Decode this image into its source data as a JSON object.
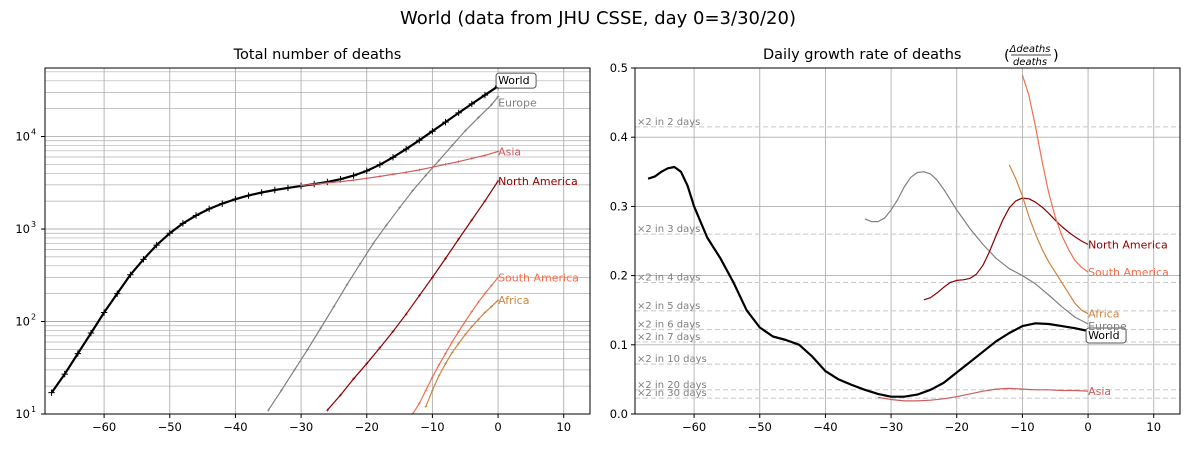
{
  "figure": {
    "title": "World (data from JHU CSSE, day 0=3/30/20)"
  },
  "chart_data": [
    {
      "type": "line",
      "title": "Total number of deaths",
      "yscale": "log",
      "xlim": [
        -69,
        14
      ],
      "ylim": [
        10,
        55000
      ],
      "x_ticks": [
        -60,
        -50,
        -40,
        -30,
        -20,
        -10,
        0,
        10
      ],
      "x_tick_labels": [
        "−60",
        "−50",
        "−40",
        "−30",
        "−20",
        "−10",
        "0",
        "10"
      ],
      "y_ticks": [
        {
          "value": 10,
          "base": "10",
          "exp": "1"
        },
        {
          "value": 100,
          "base": "10",
          "exp": "2"
        },
        {
          "value": 1000,
          "base": "10",
          "exp": "3"
        },
        {
          "value": 10000,
          "base": "10",
          "exp": "4"
        }
      ],
      "grid": true,
      "series": [
        {
          "name": "World",
          "color": "#000000",
          "boxed": true,
          "x": [
            -68,
            -66,
            -64,
            -62,
            -60,
            -58,
            -56,
            -54,
            -52,
            -50,
            -48,
            -46,
            -44,
            -42,
            -40,
            -38,
            -36,
            -34,
            -32,
            -30,
            -28,
            -26,
            -24,
            -22,
            -20,
            -18,
            -16,
            -14,
            -12,
            -10,
            -8,
            -6,
            -4,
            -2,
            0
          ],
          "y": [
            17,
            27,
            45,
            75,
            125,
            200,
            320,
            470,
            670,
            900,
            1150,
            1400,
            1650,
            1880,
            2100,
            2300,
            2480,
            2640,
            2780,
            2920,
            3060,
            3230,
            3450,
            3780,
            4250,
            4950,
            5950,
            7300,
            9100,
            11400,
            14300,
            18000,
            22500,
            28000,
            35000
          ]
        },
        {
          "name": "Europe",
          "color": "#808080",
          "x": [
            -35,
            -33,
            -31,
            -29,
            -27,
            -25,
            -23,
            -21,
            -19,
            -17,
            -15,
            -13,
            -11,
            -9,
            -7,
            -5,
            -3,
            -1,
            0
          ],
          "y": [
            11,
            18,
            30,
            50,
            85,
            145,
            250,
            420,
            700,
            1100,
            1700,
            2600,
            3800,
            5500,
            8000,
            11500,
            16000,
            22000,
            27000
          ]
        },
        {
          "name": "Asia",
          "color": "#cd5c5c",
          "x": [
            -30,
            -28,
            -26,
            -24,
            -22,
            -20,
            -18,
            -16,
            -14,
            -12,
            -10,
            -8,
            -6,
            -4,
            -2,
            0
          ],
          "y": [
            2950,
            3050,
            3150,
            3250,
            3380,
            3530,
            3700,
            3900,
            4100,
            4350,
            4650,
            5000,
            5350,
            5800,
            6250,
            6900
          ]
        },
        {
          "name": "North America",
          "color": "#8b0000",
          "x": [
            -26,
            -24,
            -22,
            -20,
            -18,
            -16,
            -14,
            -12,
            -10,
            -8,
            -6,
            -4,
            -2,
            0
          ],
          "y": [
            11,
            16,
            24,
            35,
            52,
            78,
            120,
            190,
            300,
            480,
            780,
            1250,
            2000,
            3300
          ]
        },
        {
          "name": "South America",
          "color": "#f07050",
          "x": [
            -13,
            -12,
            -11,
            -10,
            -9,
            -8,
            -7,
            -6,
            -5,
            -4,
            -3,
            -2,
            -1,
            0
          ],
          "y": [
            10,
            13,
            18,
            25,
            34,
            45,
            60,
            78,
            100,
            128,
            162,
            200,
            245,
            300
          ]
        },
        {
          "name": "Africa",
          "color": "#cd853f",
          "x": [
            -11,
            -10,
            -9,
            -8,
            -7,
            -6,
            -5,
            -4,
            -3,
            -2,
            -1,
            0
          ],
          "y": [
            12,
            18,
            26,
            35,
            46,
            58,
            72,
            88,
            105,
            125,
            145,
            170
          ]
        }
      ]
    },
    {
      "type": "line",
      "title_prefix": "Daily growth rate of deaths",
      "title_frac_num": "Δdeaths",
      "title_frac_den": "deaths",
      "xlim": [
        -69,
        14
      ],
      "ylim": [
        0.0,
        0.5
      ],
      "x_ticks": [
        -60,
        -50,
        -40,
        -30,
        -20,
        -10,
        0,
        10
      ],
      "x_tick_labels": [
        "−60",
        "−50",
        "−40",
        "−30",
        "−20",
        "−10",
        "0",
        "10"
      ],
      "y_ticks": [
        0.0,
        0.1,
        0.2,
        0.3,
        0.4,
        0.5
      ],
      "y_tick_labels": [
        "0.0",
        "0.1",
        "0.2",
        "0.3",
        "0.4",
        "0.5"
      ],
      "grid": true,
      "doubling_lines": [
        {
          "label": "×2 in 2 days",
          "y": 0.415
        },
        {
          "label": "×2 in 3 days",
          "y": 0.26
        },
        {
          "label": "×2 in 4 days",
          "y": 0.19
        },
        {
          "label": "×2 in 5 days",
          "y": 0.149
        },
        {
          "label": "×2 in 6 days",
          "y": 0.122
        },
        {
          "label": "×2 in 7 days",
          "y": 0.104
        },
        {
          "label": "×2 in 10 days",
          "y": 0.072
        },
        {
          "label": "×2 in 20 days",
          "y": 0.035
        },
        {
          "label": "×2 in 30 days",
          "y": 0.023
        }
      ],
      "series": [
        {
          "name": "World",
          "color": "#000000",
          "boxed": true,
          "width": 2.2,
          "x": [
            -67,
            -66,
            -65,
            -64,
            -63,
            -62,
            -61,
            -60,
            -58,
            -56,
            -54,
            -52,
            -50,
            -48,
            -46,
            -44,
            -42,
            -40,
            -38,
            -36,
            -34,
            -32,
            -30,
            -28,
            -26,
            -24,
            -22,
            -20,
            -18,
            -16,
            -14,
            -12,
            -10,
            -8,
            -6,
            -4,
            -2,
            0
          ],
          "y": [
            0.34,
            0.343,
            0.35,
            0.355,
            0.357,
            0.35,
            0.33,
            0.3,
            0.255,
            0.225,
            0.19,
            0.15,
            0.125,
            0.112,
            0.107,
            0.1,
            0.083,
            0.062,
            0.05,
            0.042,
            0.035,
            0.029,
            0.025,
            0.025,
            0.028,
            0.035,
            0.045,
            0.06,
            0.075,
            0.09,
            0.105,
            0.117,
            0.127,
            0.131,
            0.13,
            0.127,
            0.124,
            0.12
          ]
        },
        {
          "name": "Europe",
          "color": "#808080",
          "x": [
            -34,
            -33,
            -32,
            -31,
            -30,
            -29,
            -28,
            -27,
            -26,
            -25,
            -24,
            -23,
            -22,
            -20,
            -18,
            -16,
            -14,
            -12,
            -10,
            -8,
            -6,
            -4,
            -2,
            0
          ],
          "y": [
            0.282,
            0.278,
            0.278,
            0.283,
            0.295,
            0.31,
            0.328,
            0.342,
            0.349,
            0.35,
            0.347,
            0.338,
            0.325,
            0.295,
            0.268,
            0.245,
            0.225,
            0.21,
            0.2,
            0.188,
            0.172,
            0.155,
            0.14,
            0.13
          ]
        },
        {
          "name": "Asia",
          "color": "#cd5c5c",
          "x": [
            -32,
            -30,
            -28,
            -26,
            -24,
            -22,
            -20,
            -18,
            -16,
            -14,
            -12,
            -10,
            -8,
            -6,
            -4,
            -2,
            0
          ],
          "y": [
            0.024,
            0.021,
            0.019,
            0.019,
            0.02,
            0.022,
            0.025,
            0.029,
            0.033,
            0.036,
            0.037,
            0.036,
            0.035,
            0.035,
            0.034,
            0.034,
            0.033
          ]
        },
        {
          "name": "North America",
          "color": "#8b0000",
          "x": [
            -25,
            -24,
            -23,
            -22,
            -21,
            -20,
            -19,
            -18,
            -17,
            -16,
            -15,
            -14,
            -13,
            -12,
            -11,
            -10,
            -9,
            -8,
            -7,
            -6,
            -5,
            -4,
            -3,
            -2,
            -1,
            0
          ],
          "y": [
            0.165,
            0.168,
            0.175,
            0.183,
            0.19,
            0.193,
            0.194,
            0.196,
            0.202,
            0.215,
            0.235,
            0.258,
            0.28,
            0.298,
            0.308,
            0.312,
            0.311,
            0.306,
            0.299,
            0.29,
            0.28,
            0.271,
            0.263,
            0.256,
            0.25,
            0.245
          ]
        },
        {
          "name": "South America",
          "color": "#f07050",
          "x": [
            -10,
            -9,
            -8,
            -7,
            -6,
            -5,
            -4,
            -3,
            -2,
            -1,
            0
          ],
          "y": [
            0.49,
            0.46,
            0.415,
            0.365,
            0.32,
            0.285,
            0.258,
            0.238,
            0.222,
            0.212,
            0.205
          ]
        },
        {
          "name": "Africa",
          "color": "#cd853f",
          "x": [
            -12,
            -11,
            -10,
            -9,
            -8,
            -7,
            -6,
            -5,
            -4,
            -3,
            -2,
            -1,
            0
          ],
          "y": [
            0.36,
            0.34,
            0.315,
            0.285,
            0.26,
            0.238,
            0.22,
            0.205,
            0.19,
            0.175,
            0.16,
            0.15,
            0.145
          ]
        }
      ]
    }
  ]
}
